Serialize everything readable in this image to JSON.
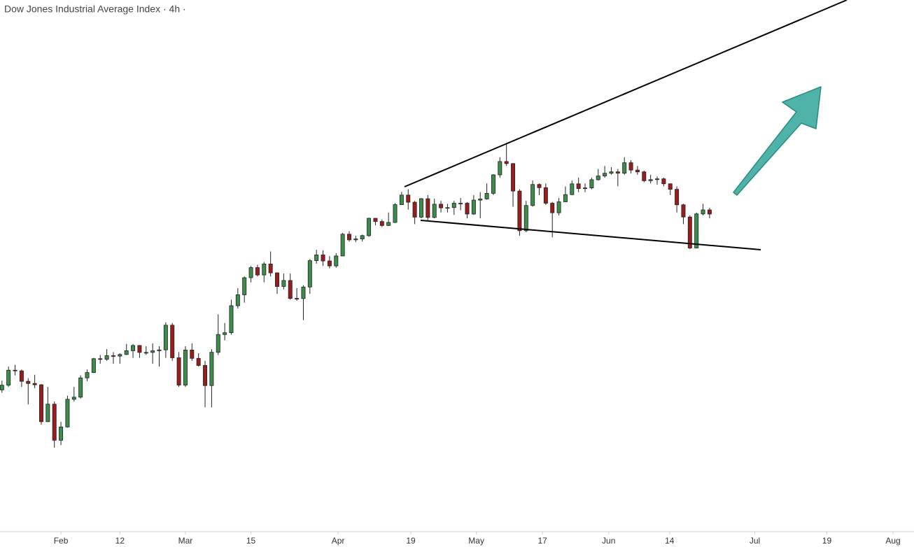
{
  "chart_data": {
    "type": "candlestick",
    "title": "Dow Jones Industrial Average Index · 4h ·",
    "up_color": "#3c8c4a",
    "down_color": "#9b1c1c",
    "xlim": [
      -0.3,
      139.2
    ],
    "ylim": [
      28412,
      37555
    ],
    "xticks": [
      {
        "value": 9,
        "label": "Feb"
      },
      {
        "value": 18,
        "label": "12"
      },
      {
        "value": 28,
        "label": "Mar"
      },
      {
        "value": 38,
        "label": "15"
      },
      {
        "value": 51.3,
        "label": "Apr"
      },
      {
        "value": 62.4,
        "label": "19"
      },
      {
        "value": 72.4,
        "label": "May"
      },
      {
        "value": 82.5,
        "label": "17"
      },
      {
        "value": 92.6,
        "label": "Jun"
      },
      {
        "value": 101.9,
        "label": "14"
      },
      {
        "value": 114.9,
        "label": "Jul"
      },
      {
        "value": 125.9,
        "label": "19"
      },
      {
        "value": 136,
        "label": "Aug"
      }
    ],
    "open": [
      30850,
      30930,
      31188,
      31176,
      30997,
      30960,
      30937,
      30303,
      30604,
      29983,
      30212,
      30688,
      30724,
      31056,
      31148,
      31386,
      31376,
      31438,
      31431,
      31458,
      31523,
      31613,
      31494,
      31494,
      31522,
      31538,
      31962,
      31402,
      30932,
      31535,
      31392,
      31270,
      30924,
      31496,
      31802,
      31833,
      32297,
      32485,
      32779,
      32953,
      32826,
      33015,
      32862,
      32628,
      32731,
      32423,
      32420,
      32619,
      33072,
      33171,
      33067,
      32982,
      33153,
      33527,
      33430,
      33446,
      33503,
      33801,
      33745,
      33677,
      33730,
      34035,
      34200,
      34077,
      33821,
      34137,
      33815,
      34043,
      33981,
      33985,
      34060,
      34060,
      33874,
      34113,
      34133,
      34230,
      34548,
      34777,
      34742,
      34269,
      33587,
      34021,
      34382,
      34327,
      34060,
      33896,
      34084,
      34208,
      34393,
      34312,
      34323,
      34464,
      34529,
      34575,
      34600,
      34577,
      34756,
      34630,
      34599,
      34447,
      34466,
      34479,
      34394,
      34299,
      34033,
      33823,
      33290,
      33876,
      33945
    ],
    "high": [
      31010,
      31250,
      31280,
      31200,
      31050,
      31110,
      30950,
      30900,
      30650,
      30300,
      30750,
      30900,
      31100,
      31200,
      31400,
      31450,
      31550,
      31500,
      31480,
      31640,
      31640,
      31620,
      31600,
      31650,
      31600,
      32010,
      32000,
      31500,
      31600,
      31650,
      31480,
      31350,
      31550,
      32150,
      32000,
      32400,
      32600,
      32800,
      32980,
      33000,
      33050,
      33230,
      32870,
      32850,
      32850,
      32600,
      32650,
      33100,
      33260,
      33250,
      33150,
      33200,
      33550,
      33580,
      33500,
      33520,
      33810,
      33800,
      33780,
      33900,
      34060,
      34256,
      34300,
      34100,
      34150,
      34200,
      34140,
      34100,
      34050,
      34100,
      34150,
      34080,
      34200,
      34250,
      34400,
      34560,
      34850,
      35091,
      34750,
      34300,
      34100,
      34450,
      34400,
      34400,
      34080,
      34150,
      34350,
      34450,
      34500,
      34400,
      34500,
      34650,
      34700,
      34680,
      34650,
      34850,
      34800,
      34700,
      34620,
      34550,
      34520,
      34500,
      34400,
      34350,
      34050,
      33850,
      33900,
      34050,
      33980
    ],
    "low": [
      30800,
      30900,
      31100,
      30900,
      30600,
      30880,
      30250,
      30300,
      29856,
      29900,
      30200,
      30650,
      30700,
      31000,
      31140,
      31300,
      31350,
      31300,
      31300,
      31450,
      31400,
      31400,
      31450,
      31300,
      31250,
      31400,
      31350,
      30900,
      30900,
      31350,
      31250,
      30550,
      30550,
      31450,
      31700,
      31800,
      32250,
      32350,
      32700,
      32800,
      32700,
      32800,
      32500,
      32580,
      32400,
      32380,
      32050,
      32500,
      33020,
      32980,
      32940,
      32950,
      33150,
      33400,
      33390,
      33400,
      33480,
      33680,
      33650,
      33670,
      33720,
      34030,
      33950,
      33700,
      33800,
      33750,
      33800,
      33900,
      33900,
      33860,
      33940,
      33800,
      33860,
      33800,
      34120,
      34200,
      34500,
      34700,
      34000,
      33500,
      33560,
      34000,
      34200,
      34030,
      33473,
      33850,
      34080,
      34200,
      34250,
      34250,
      34300,
      34450,
      34500,
      34550,
      34350,
      34550,
      34570,
      34550,
      34420,
      34400,
      34380,
      34350,
      34200,
      33900,
      33700,
      33271,
      33290,
      33850,
      33800
    ],
    "close": [
      30930,
      31188,
      31176,
      30997,
      30960,
      30937,
      30303,
      30604,
      29983,
      30212,
      30688,
      30724,
      31056,
      31148,
      31386,
      31376,
      31438,
      31431,
      31458,
      31523,
      31613,
      31494,
      31494,
      31522,
      31538,
      31962,
      31402,
      30932,
      31535,
      31392,
      31270,
      30924,
      31496,
      31802,
      31833,
      32297,
      32485,
      32779,
      32953,
      32826,
      33015,
      32862,
      32628,
      32731,
      32423,
      32420,
      32619,
      33072,
      33171,
      33067,
      32982,
      33153,
      33527,
      33430,
      33446,
      33503,
      33801,
      33745,
      33677,
      33730,
      34035,
      34200,
      34077,
      33821,
      34137,
      33815,
      34043,
      33981,
      33985,
      34060,
      34060,
      33874,
      34113,
      34133,
      34230,
      34548,
      34777,
      34742,
      34269,
      33587,
      34021,
      34382,
      34327,
      34060,
      33896,
      34084,
      34208,
      34393,
      34312,
      34323,
      34464,
      34529,
      34575,
      34600,
      34577,
      34756,
      34630,
      34599,
      34447,
      34466,
      34479,
      34394,
      34299,
      34033,
      33823,
      33290,
      33876,
      33945,
      33874
    ]
  }
}
